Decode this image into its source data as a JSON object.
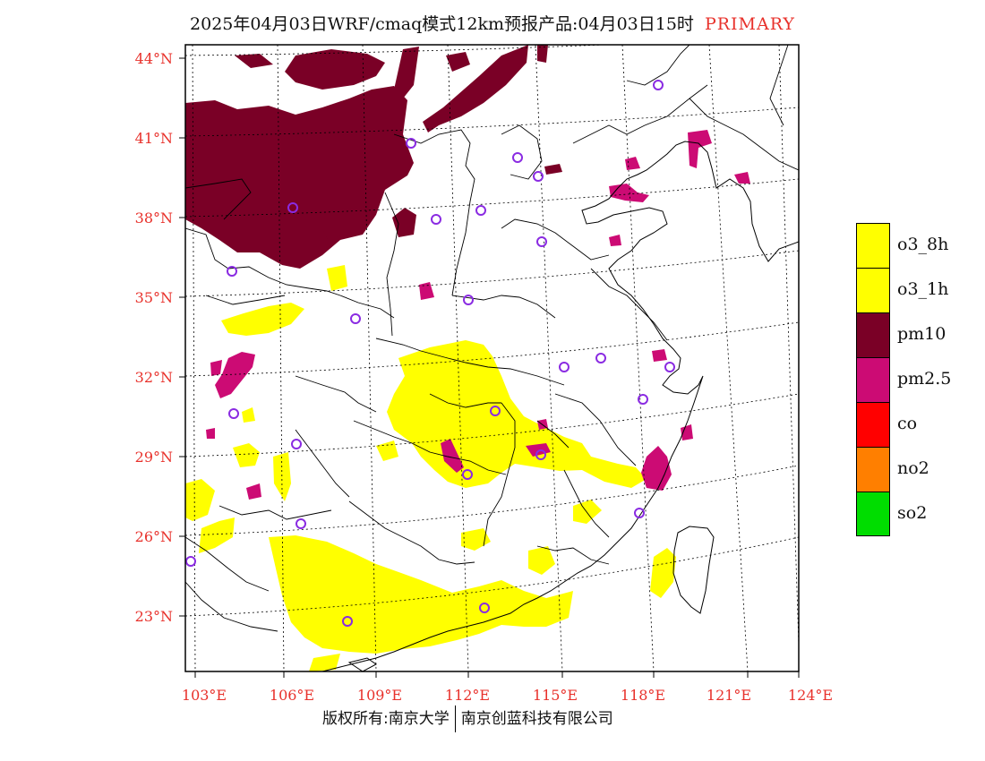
{
  "title": {
    "main": "2025年04月03日WRF/cmaq模式12km预报产品:04月03日15时",
    "tag": "PRIMARY"
  },
  "axes": {
    "lat_labels": [
      "44°N",
      "41°N",
      "38°N",
      "35°N",
      "32°N",
      "29°N",
      "26°N",
      "23°N"
    ],
    "lon_labels": [
      "103°E",
      "106°E",
      "109°E",
      "112°E",
      "115°E",
      "118°E",
      "121°E",
      "124°E"
    ]
  },
  "legend": [
    {
      "label": "o3_8h",
      "color": "#ffff00"
    },
    {
      "label": "o3_1h",
      "color": "#ffff00"
    },
    {
      "label": "pm10",
      "color": "#7a0026"
    },
    {
      "label": "pm2.5",
      "color": "#cc0b74"
    },
    {
      "label": "co",
      "color": "#ff0000"
    },
    {
      "label": "no2",
      "color": "#ff7f00"
    },
    {
      "label": "so2",
      "color": "#00dd00"
    }
  ],
  "footer": {
    "left": "版权所有:南京大学",
    "right": "南京创蓝科技有限公司"
  },
  "colors": {
    "pm10": "#7a0026",
    "pm25": "#cc0b74",
    "o3": "#ffff00",
    "station_circle": "#8a2be2",
    "tick_text": "#e8312b"
  }
}
